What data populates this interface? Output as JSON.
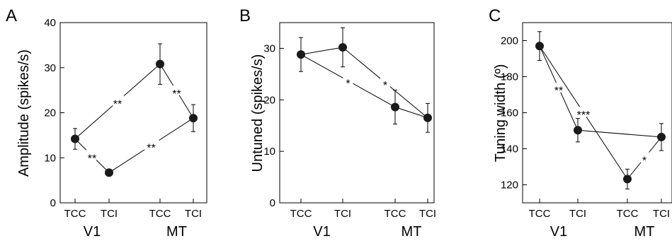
{
  "chart_data": [
    {
      "type": "scatter",
      "panel": "A",
      "ylabel": "Amplitude (spikes/s)",
      "ylim": [
        0,
        40
      ],
      "yticks": [
        0,
        10,
        20,
        30,
        40
      ],
      "categories": [
        "TCC",
        "TCI",
        "TCC",
        "TCI"
      ],
      "groups": [
        {
          "label": "V1",
          "from": 0,
          "to": 1
        },
        {
          "label": "MT",
          "from": 2,
          "to": 3
        }
      ],
      "points": [
        {
          "y": 14.2,
          "err": 2.3
        },
        {
          "y": 6.7,
          "err": 0.4
        },
        {
          "y": 30.8,
          "err": 4.5
        },
        {
          "y": 18.8,
          "err": 3.0
        }
      ],
      "lines": [
        {
          "from": 0,
          "to": 1,
          "label": "**"
        },
        {
          "from": 1,
          "to": 3,
          "label": "**"
        },
        {
          "from": 3,
          "to": 2,
          "label": "**"
        },
        {
          "from": 2,
          "to": 0,
          "label": "**"
        }
      ]
    },
    {
      "type": "scatter",
      "panel": "B",
      "ylabel": "Untuned (spikes/s)",
      "ylim": [
        0,
        35
      ],
      "yticks": [
        0,
        10,
        20,
        30
      ],
      "categories": [
        "TCC",
        "TCI",
        "TCC",
        "TCI"
      ],
      "groups": [
        {
          "label": "V1",
          "from": 0,
          "to": 1
        },
        {
          "label": "MT",
          "from": 2,
          "to": 3
        }
      ],
      "points": [
        {
          "y": 28.8,
          "err": 3.3
        },
        {
          "y": 30.2,
          "err": 3.8
        },
        {
          "y": 18.6,
          "err": 3.3
        },
        {
          "y": 16.5,
          "err": 2.8
        }
      ],
      "lines": [
        {
          "from": 0,
          "to": 1,
          "label": ""
        },
        {
          "from": 0,
          "to": 2,
          "label": "*"
        },
        {
          "from": 2,
          "to": 3,
          "label": ""
        },
        {
          "from": 1,
          "to": 3,
          "label": "*"
        }
      ]
    },
    {
      "type": "scatter",
      "panel": "C",
      "ylabel": "Tuning width (º)",
      "ylim": [
        110,
        210
      ],
      "yticks": [
        120,
        140,
        160,
        180,
        200
      ],
      "categories": [
        "TCC",
        "TCI",
        "TCC",
        "TCI"
      ],
      "groups": [
        {
          "label": "V1",
          "from": 0,
          "to": 1
        },
        {
          "label": "MT",
          "from": 2,
          "to": 3
        }
      ],
      "points": [
        {
          "y": 197,
          "err": 8
        },
        {
          "y": 150.3,
          "err": 6.5
        },
        {
          "y": 123.2,
          "err": 5.5
        },
        {
          "y": 146.5,
          "err": 7.5
        }
      ],
      "lines": [
        {
          "from": 0,
          "to": 1,
          "label": "**"
        },
        {
          "from": 0,
          "to": 2,
          "label": "***"
        },
        {
          "from": 2,
          "to": 3,
          "label": "*"
        },
        {
          "from": 1,
          "to": 3,
          "label": ""
        }
      ]
    }
  ]
}
